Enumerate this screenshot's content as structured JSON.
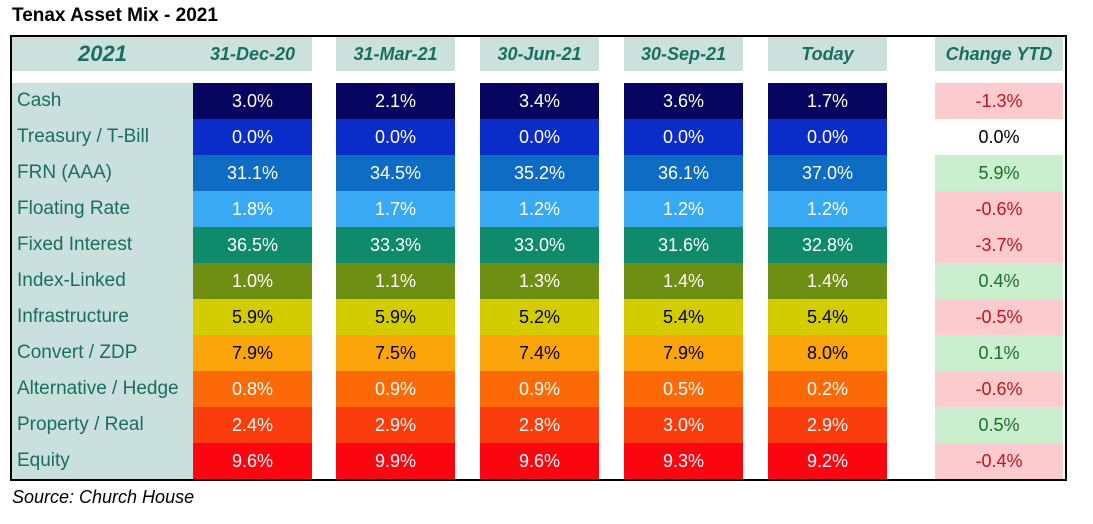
{
  "title": "Tenax Asset Mix - 2021",
  "source": "Source: Church House",
  "chart_data": {
    "type": "table",
    "title": "Tenax Asset Mix - 2021",
    "corner_label": "2021",
    "columns": [
      "31-Dec-20",
      "31-Mar-21",
      "30-Jun-21",
      "30-Sep-21",
      "Today"
    ],
    "change_header": "Change YTD",
    "rows": [
      {
        "label": "Cash",
        "color": "#060660",
        "text_color": "#ffffff",
        "values": [
          "3.0%",
          "2.1%",
          "3.4%",
          "3.6%",
          "1.7%"
        ],
        "change": "-1.3%",
        "change_sign": "neg"
      },
      {
        "label": "Treasury / T-Bill",
        "color": "#0a2cc8",
        "text_color": "#ffffff",
        "values": [
          "0.0%",
          "0.0%",
          "0.0%",
          "0.0%",
          "0.0%"
        ],
        "change": "0.0%",
        "change_sign": "zero"
      },
      {
        "label": "FRN (AAA)",
        "color": "#0f6cc5",
        "text_color": "#ffffff",
        "values": [
          "31.1%",
          "34.5%",
          "35.2%",
          "36.1%",
          "37.0%"
        ],
        "change": "5.9%",
        "change_sign": "pos"
      },
      {
        "label": "Floating Rate",
        "color": "#38a9f2",
        "text_color": "#ffffff",
        "values": [
          "1.8%",
          "1.7%",
          "1.2%",
          "1.2%",
          "1.2%"
        ],
        "change": "-0.6%",
        "change_sign": "neg"
      },
      {
        "label": "Fixed Interest",
        "color": "#0f8b6b",
        "text_color": "#ffffff",
        "values": [
          "36.5%",
          "33.3%",
          "33.0%",
          "31.6%",
          "32.8%"
        ],
        "change": "-3.7%",
        "change_sign": "neg"
      },
      {
        "label": "Index-Linked",
        "color": "#6f8f12",
        "text_color": "#ffffff",
        "values": [
          "1.0%",
          "1.1%",
          "1.3%",
          "1.4%",
          "1.4%"
        ],
        "change": "0.4%",
        "change_sign": "pos"
      },
      {
        "label": "Infrastructure",
        "color": "#d3cc00",
        "text_color": "#000000",
        "values": [
          "5.9%",
          "5.9%",
          "5.2%",
          "5.4%",
          "5.4%"
        ],
        "change": "-0.5%",
        "change_sign": "neg"
      },
      {
        "label": "Convert / ZDP",
        "color": "#fca50a",
        "text_color": "#000000",
        "values": [
          "7.9%",
          "7.5%",
          "7.4%",
          "7.9%",
          "8.0%"
        ],
        "change": "0.1%",
        "change_sign": "pos"
      },
      {
        "label": "Alternative / Hedge",
        "color": "#fb6a06",
        "text_color": "#ffffff",
        "values": [
          "0.8%",
          "0.9%",
          "0.9%",
          "0.5%",
          "0.2%"
        ],
        "change": "-0.6%",
        "change_sign": "neg"
      },
      {
        "label": "Property / Real",
        "color": "#fb3c0c",
        "text_color": "#ffffff",
        "values": [
          "2.4%",
          "2.9%",
          "2.8%",
          "3.0%",
          "2.9%"
        ],
        "change": "0.5%",
        "change_sign": "pos"
      },
      {
        "label": "Equity",
        "color": "#fb0610",
        "text_color": "#ffffff",
        "values": [
          "9.6%",
          "9.9%",
          "9.6%",
          "9.3%",
          "9.2%"
        ],
        "change": "-0.4%",
        "change_sign": "neg"
      }
    ]
  }
}
